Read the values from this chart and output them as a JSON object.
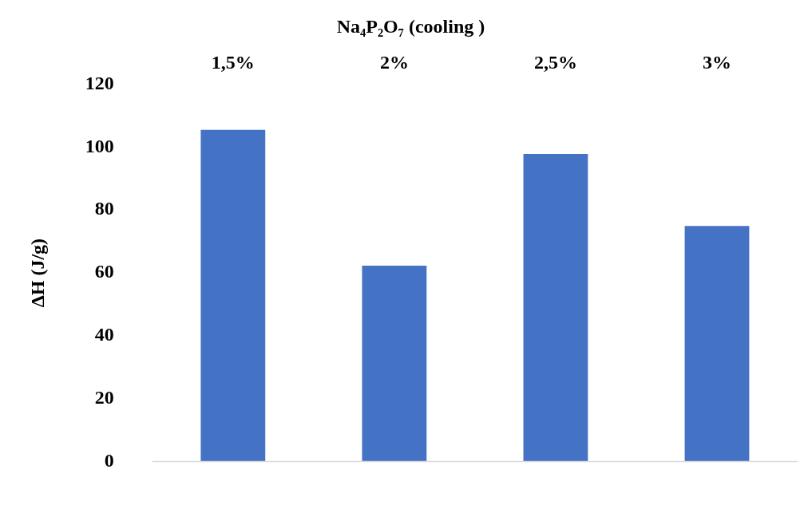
{
  "chart_data": {
    "type": "bar",
    "title": "Na₄P₂O₇ (cooling )",
    "ylabel": "ΔH (J/g)",
    "categories": [
      "1,5%",
      "2%",
      "2,5%",
      "3%"
    ],
    "values": [
      105.5,
      62.3,
      97.8,
      74.9
    ],
    "color": "#4472c4",
    "ylim": [
      0,
      120
    ],
    "yticks": [
      0,
      20,
      40,
      60,
      80,
      100,
      120
    ]
  }
}
